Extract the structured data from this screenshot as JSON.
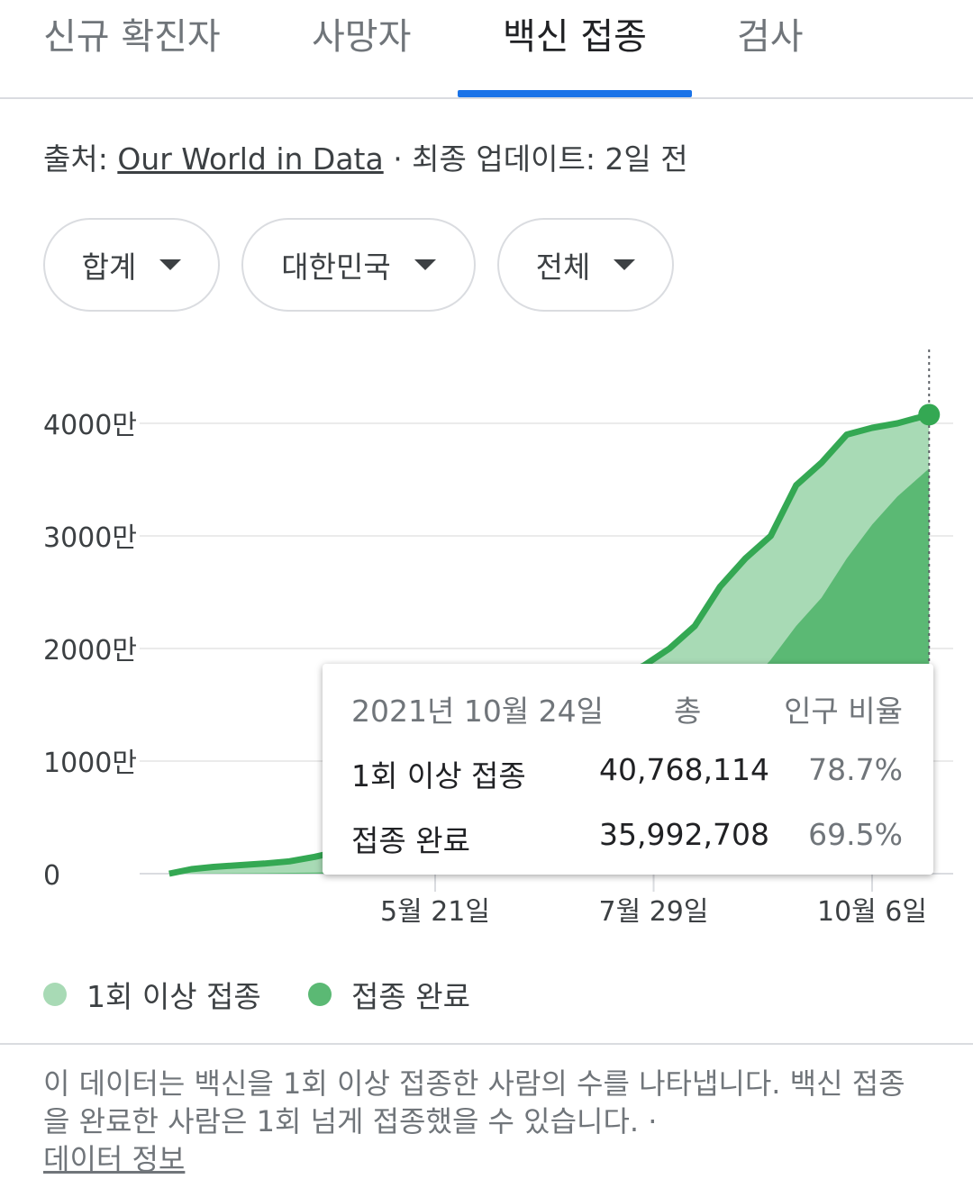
{
  "tabs": [
    {
      "label": "신규 확진자",
      "active": false
    },
    {
      "label": "사망자",
      "active": false
    },
    {
      "label": "백신 접종",
      "active": true
    },
    {
      "label": "검사",
      "active": false
    }
  ],
  "source": {
    "prefix": "출처: ",
    "link": "Our World in Data",
    "suffix": " · 최종 업데이트: 2일 전"
  },
  "filters": {
    "metric": "합계",
    "country": "대한민국",
    "population": "전체"
  },
  "chart_data": {
    "type": "area",
    "ylim": [
      0,
      4000
    ],
    "y_unit": "만",
    "y_ticks": [
      "0",
      "1000만",
      "2000만",
      "3000만",
      "4000만"
    ],
    "x_tick_labels": [
      "5월 21일",
      "7월 29일",
      "10월 6일"
    ],
    "x_ticks": [
      "2021-05-21",
      "2021-07-29",
      "2021-10-06"
    ],
    "grid": true,
    "series": [
      {
        "name": "1회 이상 접종",
        "color": "#a8dab5",
        "line_color": "#34a853",
        "x": [
          "2021-02-26",
          "2021-03-05",
          "2021-03-12",
          "2021-03-20",
          "2021-03-28",
          "2021-04-05",
          "2021-04-13",
          "2021-04-21",
          "2021-04-29",
          "2021-05-07",
          "2021-05-15",
          "2021-05-23",
          "2021-05-31",
          "2021-06-08",
          "2021-06-16",
          "2021-06-24",
          "2021-07-02",
          "2021-07-10",
          "2021-07-18",
          "2021-07-26",
          "2021-08-03",
          "2021-08-11",
          "2021-08-19",
          "2021-08-27",
          "2021-09-04",
          "2021-09-12",
          "2021-09-20",
          "2021-09-28",
          "2021-10-06",
          "2021-10-14",
          "2021-10-24"
        ],
        "values": [
          0,
          40,
          60,
          75,
          90,
          110,
          150,
          200,
          280,
          330,
          380,
          520,
          900,
          1300,
          1500,
          1550,
          1620,
          1680,
          1750,
          1850,
          2000,
          2200,
          2550,
          2800,
          3000,
          3450,
          3650,
          3900,
          3960,
          4000,
          4077
        ]
      },
      {
        "name": "접종 완료",
        "color": "#5bb974",
        "x": [
          "2021-02-26",
          "2021-03-12",
          "2021-03-28",
          "2021-04-13",
          "2021-04-29",
          "2021-05-15",
          "2021-05-31",
          "2021-06-16",
          "2021-07-02",
          "2021-07-18",
          "2021-08-03",
          "2021-08-11",
          "2021-08-19",
          "2021-08-27",
          "2021-09-04",
          "2021-09-12",
          "2021-09-20",
          "2021-09-28",
          "2021-10-06",
          "2021-10-14",
          "2021-10-24"
        ],
        "values": [
          0,
          2,
          5,
          10,
          20,
          40,
          110,
          250,
          400,
          550,
          900,
          1300,
          1450,
          1650,
          1900,
          2200,
          2450,
          2800,
          3100,
          3350,
          3599
        ]
      }
    ],
    "tooltip": {
      "date": "2021년 10월 24일",
      "total_header": "총",
      "ratio_header": "인구 비율",
      "rows": [
        {
          "label": "1회 이상 접종",
          "total": "40,768,114",
          "ratio": "78.7%"
        },
        {
          "label": "접종 완료",
          "total": "35,992,708",
          "ratio": "69.5%"
        }
      ]
    }
  },
  "legend": [
    {
      "label": "1회 이상 접종",
      "color": "#a8dab5"
    },
    {
      "label": "접종 완료",
      "color": "#5bb974"
    }
  ],
  "note": {
    "text": "이 데이터는 백신을 1회 이상 접종한 사람의 수를 나타냅니다. 백신 접종을 완료한 사람은 1회 넘게 접종했을 수 있습니다. ·",
    "link": "데이터 정보"
  }
}
